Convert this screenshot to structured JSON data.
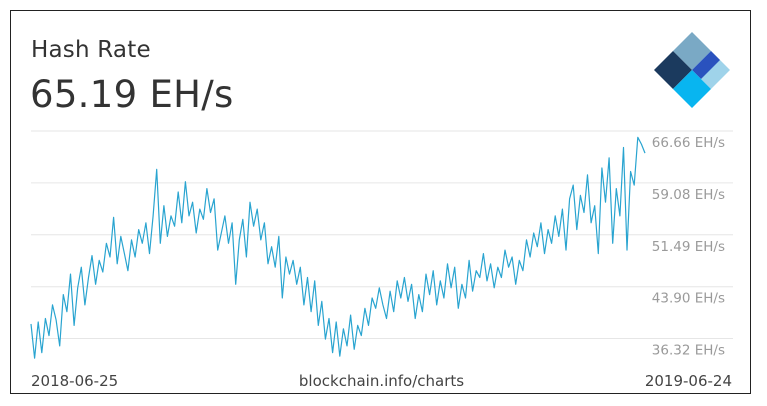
{
  "header": {
    "title": "Hash Rate",
    "value": "65.19 EH/s"
  },
  "footer": {
    "start_date": "2018-06-25",
    "source": "blockchain.info/charts",
    "end_date": "2019-06-24"
  },
  "colors": {
    "line": "#29a4d0",
    "grid": "#e6e6e6",
    "tick_text": "#9a9a9a",
    "logo_dark": "#1b3a5e",
    "logo_light": "#7aa9c5",
    "logo_blue": "#2a52be",
    "logo_sky": "#9fd3ea",
    "logo_cyan": "#08b5f0"
  },
  "logo": {
    "icon": "blockchain-logo-icon"
  },
  "chart_data": {
    "type": "line",
    "title": "Hash Rate",
    "x_start": "2018-06-25",
    "x_end": "2019-06-24",
    "ylim": [
      34.5,
      69.0
    ],
    "grid": true,
    "y_ticks": [
      36.32,
      43.9,
      51.49,
      59.08,
      66.66
    ],
    "y_tick_labels": [
      "36.32 EH/s",
      "43.90 EH/s",
      "51.49 EH/s",
      "59.08 EH/s",
      "66.66 EH/s"
    ],
    "series": [
      {
        "values": [
          40.2,
          35.2,
          40.5,
          36.0,
          41.0,
          38.5,
          43.0,
          40.8,
          37.0,
          44.5,
          42.0,
          47.5,
          40.0,
          45.5,
          48.5,
          43.0,
          47.0,
          50.2,
          46.0,
          49.5,
          47.8,
          52.0,
          50.0,
          55.8,
          49.0,
          53.0,
          50.5,
          48.0,
          52.5,
          50.0,
          54.0,
          52.0,
          55.0,
          50.5,
          56.0,
          62.8,
          52.0,
          57.5,
          53.0,
          56.0,
          54.5,
          59.5,
          55.0,
          61.0,
          56.0,
          58.0,
          53.5,
          57.0,
          55.5,
          60.0,
          56.5,
          58.5,
          51.0,
          53.5,
          56.0,
          52.0,
          55.0,
          46.0,
          52.5,
          55.5,
          50.0,
          58.0,
          54.5,
          57.0,
          52.5,
          55.0,
          49.0,
          51.5,
          48.5,
          53.0,
          44.0,
          50.0,
          47.5,
          49.5,
          46.0,
          48.5,
          43.0,
          47.0,
          42.0,
          46.5,
          40.0,
          43.5,
          38.0,
          41.0,
          36.0,
          40.5,
          35.5,
          39.5,
          37.0,
          41.5,
          36.5,
          40.0,
          38.5,
          42.5,
          40.0,
          44.0,
          42.5,
          45.5,
          43.0,
          41.0,
          45.0,
          42.0,
          46.5,
          44.0,
          47.0,
          43.5,
          46.0,
          41.0,
          44.5,
          42.0,
          47.5,
          44.5,
          48.0,
          43.0,
          46.5,
          44.0,
          49.0,
          45.5,
          48.5,
          42.5,
          46.0,
          44.0,
          49.5,
          45.0,
          48.0,
          47.0,
          50.5,
          46.5,
          49.0,
          45.5,
          48.5,
          47.0,
          51.0,
          48.5,
          50.0,
          46.0,
          49.5,
          48.0,
          52.5,
          50.0,
          53.5,
          51.5,
          55.0,
          50.5,
          54.0,
          52.0,
          56.0,
          53.0,
          57.0,
          51.0,
          58.5,
          60.5,
          54.0,
          59.0,
          56.5,
          62.0,
          55.0,
          57.5,
          50.5,
          63.0,
          58.0,
          64.5,
          52.0,
          60.0,
          56.0,
          66.0,
          51.0,
          62.5,
          60.5,
          67.5,
          66.5,
          65.19
        ],
        "line_style": "solid"
      }
    ]
  }
}
